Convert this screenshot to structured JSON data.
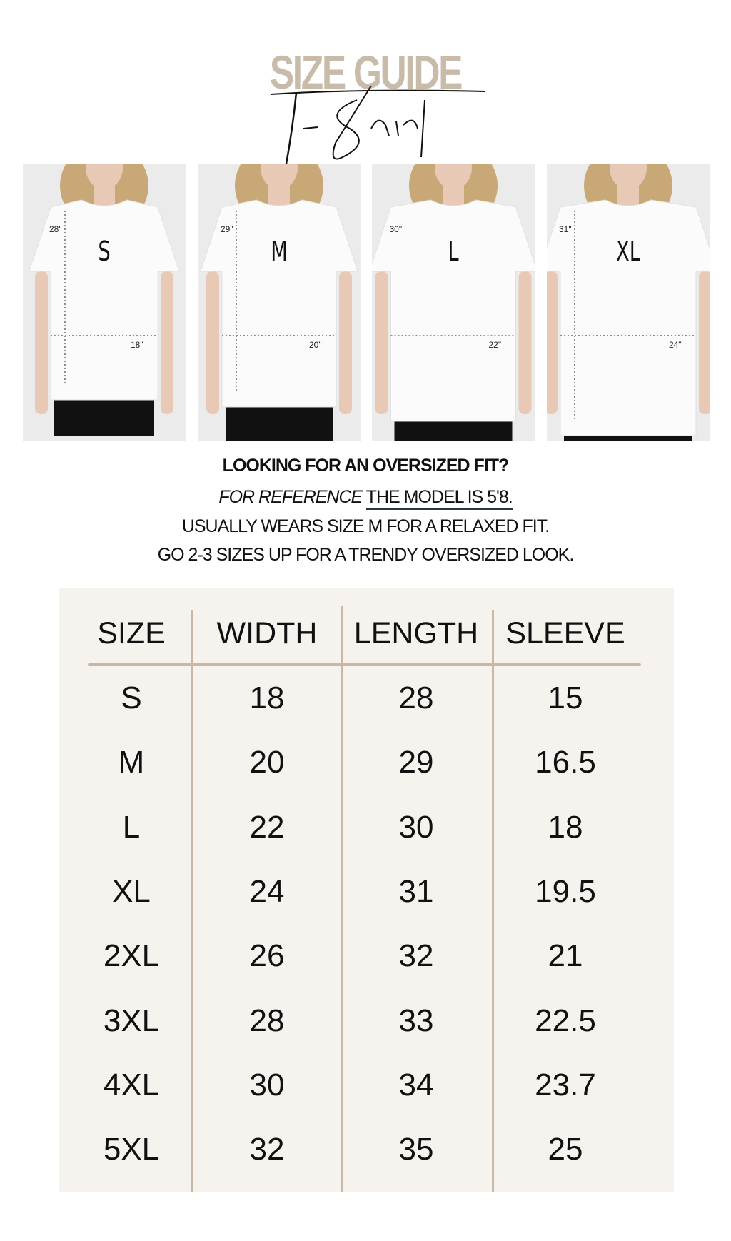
{
  "header": {
    "title": "SIZE GUIDE",
    "script_title": "T-Shirt"
  },
  "photos": [
    {
      "size": "S",
      "length": "28\"",
      "width": "18\""
    },
    {
      "size": "M",
      "length": "29\"",
      "width": "20\""
    },
    {
      "size": "L",
      "length": "30\"",
      "width": "22\""
    },
    {
      "size": "XL",
      "length": "31\"",
      "width": "24\""
    }
  ],
  "info": {
    "heading": "LOOKING FOR AN OVERSIZED FIT?",
    "ref_italic": "FOR REFERENCE",
    "ref_underlined": "THE MODEL IS 5'8.",
    "line2": "USUALLY WEARS SIZE M FOR A RELAXED FIT.",
    "line3": "GO 2-3 SIZES UP FOR A TRENDY OVERSIZED LOOK."
  },
  "colors": {
    "title": "#c9bba9",
    "table_bg": "#f6f3ee",
    "divider": "#c8b9a6"
  },
  "table": {
    "headers": [
      "SIZE",
      "WIDTH",
      "LENGTH",
      "SLEEVE"
    ],
    "rows": [
      [
        "S",
        "18",
        "28",
        "15"
      ],
      [
        "M",
        "20",
        "29",
        "16.5"
      ],
      [
        "L",
        "22",
        "30",
        "18"
      ],
      [
        "XL",
        "24",
        "31",
        "19.5"
      ],
      [
        "2XL",
        "26",
        "32",
        "21"
      ],
      [
        "3XL",
        "28",
        "33",
        "22.5"
      ],
      [
        "4XL",
        "30",
        "34",
        "23.7"
      ],
      [
        "5XL",
        "32",
        "35",
        "25"
      ]
    ]
  }
}
